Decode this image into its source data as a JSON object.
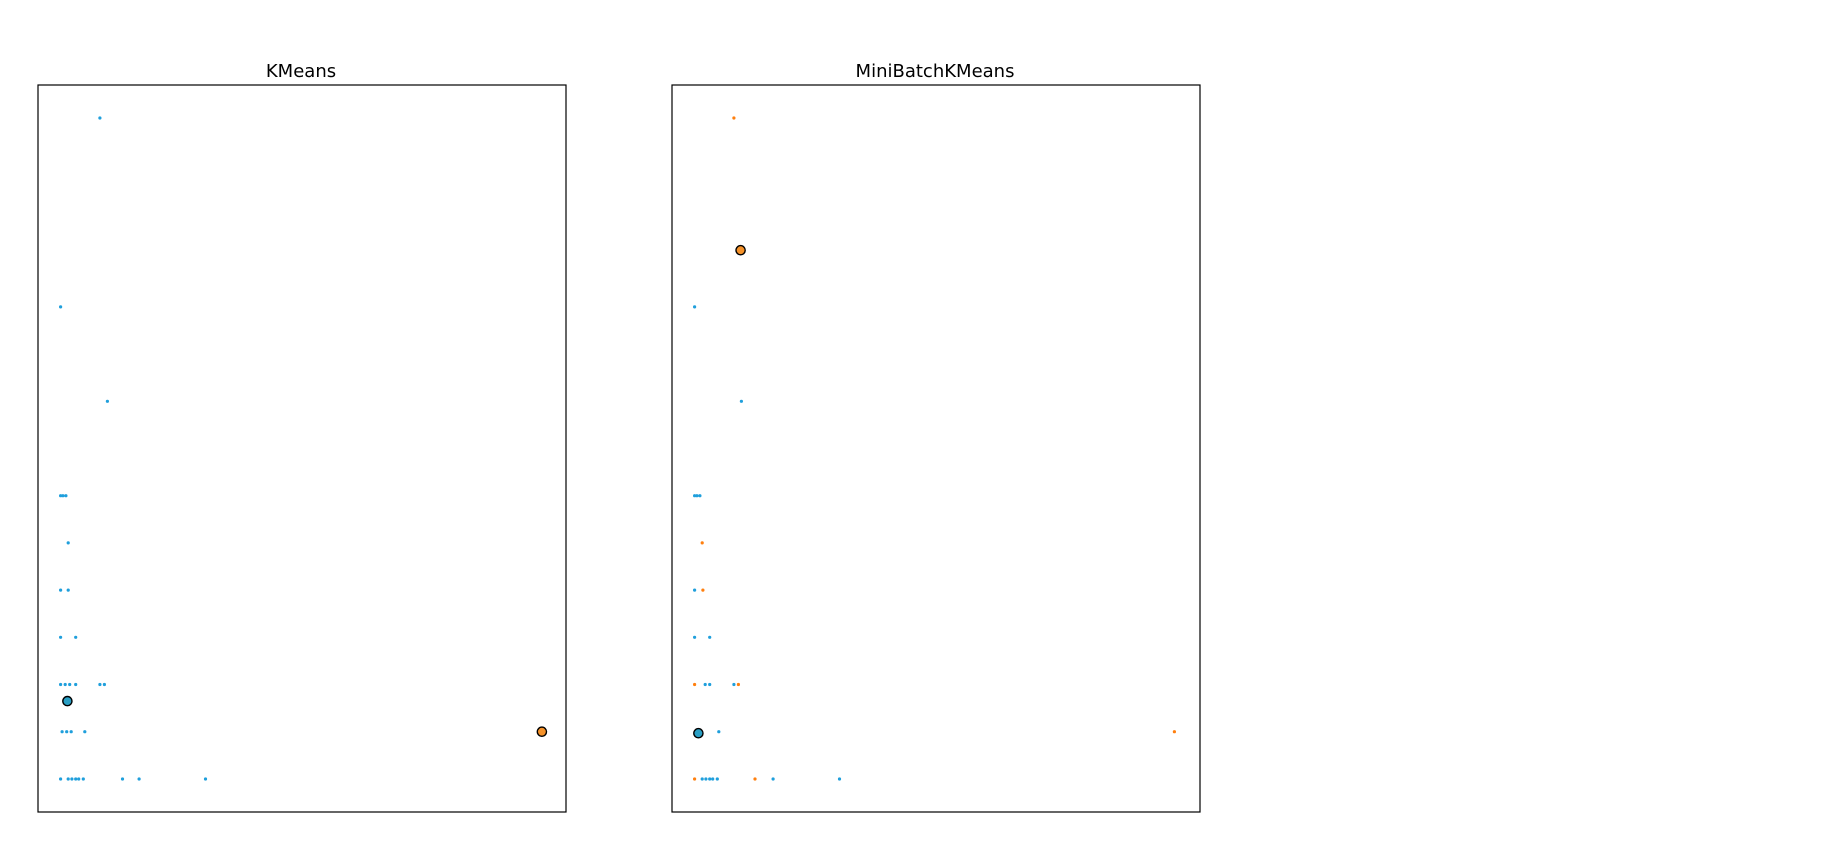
{
  "colors": {
    "cluster_0": "#1f9fdc",
    "cluster_1": "#ff7f0e",
    "center_0": "#2a9fc4",
    "center_1": "#f5922a",
    "center_edge": "#000000",
    "frame": "#000000",
    "background": "#ffffff"
  },
  "chart_data": [
    {
      "type": "scatter",
      "title": "KMeans",
      "xlabel": "",
      "ylabel": "",
      "xlim": [
        -1.5,
        33.5
      ],
      "ylim": [
        -0.7,
        14.7
      ],
      "ticks": "hidden",
      "grid": false,
      "points": [
        {
          "x": 2.6,
          "y": 14.0,
          "cluster": 0
        },
        {
          "x": 0,
          "y": 10.0,
          "cluster": 0
        },
        {
          "x": 3.1,
          "y": 8.0,
          "cluster": 0
        },
        {
          "x": 0,
          "y": 6.0,
          "cluster": 0
        },
        {
          "x": 0.15,
          "y": 6.0,
          "cluster": 0
        },
        {
          "x": 0.35,
          "y": 6.0,
          "cluster": 0
        },
        {
          "x": 0.5,
          "y": 5.0,
          "cluster": 0
        },
        {
          "x": 0,
          "y": 4.0,
          "cluster": 0
        },
        {
          "x": 0.5,
          "y": 4.0,
          "cluster": 0
        },
        {
          "x": 0,
          "y": 3.0,
          "cluster": 0
        },
        {
          "x": 1.0,
          "y": 3.0,
          "cluster": 0
        },
        {
          "x": 0,
          "y": 2.0,
          "cluster": 0
        },
        {
          "x": 0.3,
          "y": 2.0,
          "cluster": 0
        },
        {
          "x": 0.6,
          "y": 2.0,
          "cluster": 0
        },
        {
          "x": 1.0,
          "y": 2.0,
          "cluster": 0
        },
        {
          "x": 2.6,
          "y": 2.0,
          "cluster": 0
        },
        {
          "x": 2.9,
          "y": 2.0,
          "cluster": 0
        },
        {
          "x": 0.1,
          "y": 1.0,
          "cluster": 0
        },
        {
          "x": 0.4,
          "y": 1.0,
          "cluster": 0
        },
        {
          "x": 0.7,
          "y": 1.0,
          "cluster": 0
        },
        {
          "x": 1.6,
          "y": 1.0,
          "cluster": 0
        },
        {
          "x": 0,
          "y": 0,
          "cluster": 0
        },
        {
          "x": 0.5,
          "y": 0,
          "cluster": 0
        },
        {
          "x": 0.75,
          "y": 0,
          "cluster": 0
        },
        {
          "x": 1.0,
          "y": 0,
          "cluster": 0
        },
        {
          "x": 1.2,
          "y": 0,
          "cluster": 0
        },
        {
          "x": 1.5,
          "y": 0,
          "cluster": 0
        },
        {
          "x": 4.1,
          "y": 0,
          "cluster": 0
        },
        {
          "x": 5.2,
          "y": 0,
          "cluster": 0
        },
        {
          "x": 9.6,
          "y": 0,
          "cluster": 0
        }
      ],
      "centers": [
        {
          "x": 0.45,
          "y": 1.65,
          "cluster": 0
        },
        {
          "x": 31.9,
          "y": 1.0,
          "cluster": 1
        }
      ]
    },
    {
      "type": "scatter",
      "title": "MiniBatchKMeans",
      "xlabel": "",
      "ylabel": "",
      "xlim": [
        -1.5,
        33.5
      ],
      "ylim": [
        -0.7,
        14.7
      ],
      "ticks": "hidden",
      "grid": false,
      "points": [
        {
          "x": 2.6,
          "y": 14.0,
          "cluster": 1
        },
        {
          "x": 0,
          "y": 10.0,
          "cluster": 0
        },
        {
          "x": 3.1,
          "y": 8.0,
          "cluster": 0
        },
        {
          "x": 0,
          "y": 6.0,
          "cluster": 0
        },
        {
          "x": 0.15,
          "y": 6.0,
          "cluster": 0
        },
        {
          "x": 0.35,
          "y": 6.0,
          "cluster": 0
        },
        {
          "x": 0.5,
          "y": 5.0,
          "cluster": 1
        },
        {
          "x": 0,
          "y": 4.0,
          "cluster": 0
        },
        {
          "x": 0.55,
          "y": 4.0,
          "cluster": 1
        },
        {
          "x": 0,
          "y": 3.0,
          "cluster": 0
        },
        {
          "x": 1.0,
          "y": 3.0,
          "cluster": 0
        },
        {
          "x": 0,
          "y": 2.0,
          "cluster": 1
        },
        {
          "x": 0.7,
          "y": 2.0,
          "cluster": 0
        },
        {
          "x": 1.0,
          "y": 2.0,
          "cluster": 0
        },
        {
          "x": 2.6,
          "y": 2.0,
          "cluster": 0
        },
        {
          "x": 2.9,
          "y": 2.0,
          "cluster": 1
        },
        {
          "x": 1.6,
          "y": 1.0,
          "cluster": 0
        },
        {
          "x": 31.8,
          "y": 1.0,
          "cluster": 1
        },
        {
          "x": 0,
          "y": 0,
          "cluster": 1
        },
        {
          "x": 0.5,
          "y": 0,
          "cluster": 0
        },
        {
          "x": 0.75,
          "y": 0,
          "cluster": 0
        },
        {
          "x": 1.0,
          "y": 0,
          "cluster": 0
        },
        {
          "x": 1.2,
          "y": 0,
          "cluster": 0
        },
        {
          "x": 1.5,
          "y": 0,
          "cluster": 0
        },
        {
          "x": 4.0,
          "y": 0,
          "cluster": 1
        },
        {
          "x": 5.2,
          "y": 0,
          "cluster": 0
        },
        {
          "x": 9.6,
          "y": 0,
          "cluster": 0
        }
      ],
      "centers": [
        {
          "x": 0.25,
          "y": 0.97,
          "cluster": 0
        },
        {
          "x": 3.05,
          "y": 11.2,
          "cluster": 1
        }
      ]
    }
  ]
}
